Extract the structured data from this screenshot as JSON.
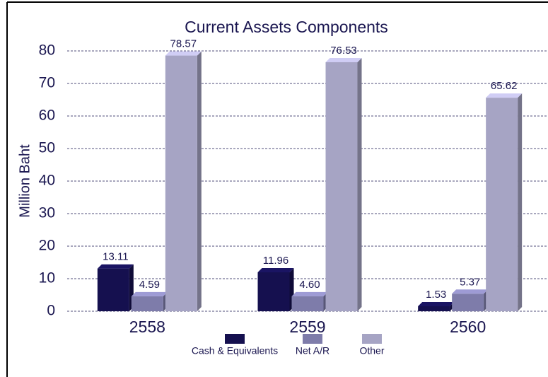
{
  "chart_data": {
    "type": "bar3d",
    "title": "Current Assets Components",
    "y_label": "Million Baht",
    "categories": [
      "2558",
      "2559",
      "2560"
    ],
    "series": [
      {
        "name": "Cash & Equivalents",
        "color": "#15104f",
        "values": [
          13.11,
          11.96,
          1.53
        ]
      },
      {
        "name": "Net A/R",
        "color": "#7e7caa",
        "values": [
          4.59,
          4.6,
          5.37
        ],
        "value_labels": [
          "4.59",
          "4.60",
          "5.37"
        ]
      },
      {
        "name": "Other",
        "color": "#a6a4c4",
        "values": [
          78.57,
          76.53,
          65.62
        ]
      }
    ],
    "ylim": [
      0,
      80
    ],
    "yticks": [
      0,
      10,
      20,
      30,
      40,
      50,
      60,
      70,
      80
    ],
    "grid": true
  }
}
